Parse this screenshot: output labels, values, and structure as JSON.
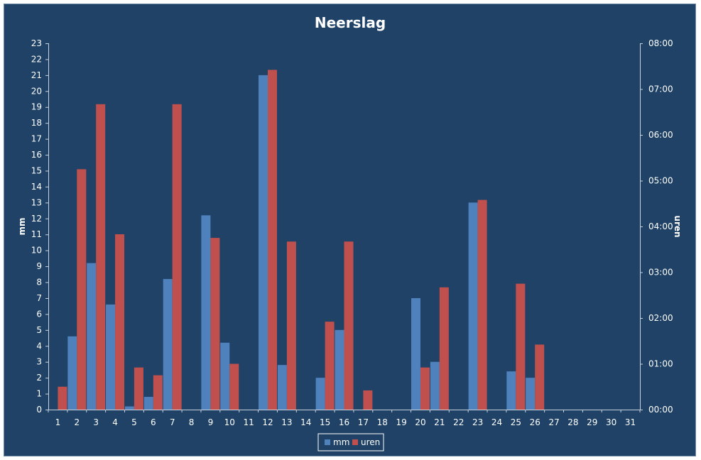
{
  "chart_data": {
    "type": "bar",
    "title": "Neerslag",
    "ylabel": "mm",
    "y2label": "uren",
    "categories": [
      "1",
      "2",
      "3",
      "4",
      "5",
      "6",
      "7",
      "8",
      "9",
      "10",
      "11",
      "12",
      "13",
      "14",
      "15",
      "16",
      "17",
      "18",
      "19",
      "20",
      "21",
      "22",
      "23",
      "24",
      "25",
      "26",
      "27",
      "28",
      "29",
      "30",
      "31"
    ],
    "ylim": [
      0,
      23
    ],
    "y2lim": [
      0,
      8
    ],
    "y_ticks": [
      "0",
      "1",
      "2",
      "3",
      "4",
      "5",
      "6",
      "7",
      "8",
      "9",
      "10",
      "11",
      "12",
      "13",
      "14",
      "15",
      "16",
      "17",
      "18",
      "19",
      "20",
      "21",
      "22",
      "23"
    ],
    "y2_ticks": [
      "00:00",
      "01:00",
      "02:00",
      "03:00",
      "04:00",
      "05:00",
      "06:00",
      "07:00",
      "08:00"
    ],
    "series": [
      {
        "name": "mm",
        "axis": "left",
        "color": "#4f81bd",
        "values": [
          0,
          4.6,
          9.2,
          6.6,
          0.2,
          0.8,
          8.2,
          0,
          12.2,
          4.2,
          0,
          21.0,
          2.8,
          0,
          2.0,
          5.0,
          0,
          0,
          0,
          7.0,
          3.0,
          0,
          13.0,
          0,
          2.4,
          2.0,
          0,
          0,
          0,
          0,
          0
        ]
      },
      {
        "name": "uren",
        "axis": "right",
        "unit": "hours",
        "color": "#c0504d",
        "values": [
          0.5,
          5.25,
          6.67,
          3.83,
          0.92,
          0.75,
          6.67,
          0,
          3.75,
          1.0,
          0,
          7.42,
          3.67,
          0,
          1.92,
          3.67,
          0.42,
          0,
          0,
          0.92,
          2.67,
          0,
          4.58,
          0,
          2.75,
          1.42,
          0,
          0,
          0,
          0,
          0
        ]
      }
    ],
    "legend_position": "bottom",
    "grid": false
  }
}
